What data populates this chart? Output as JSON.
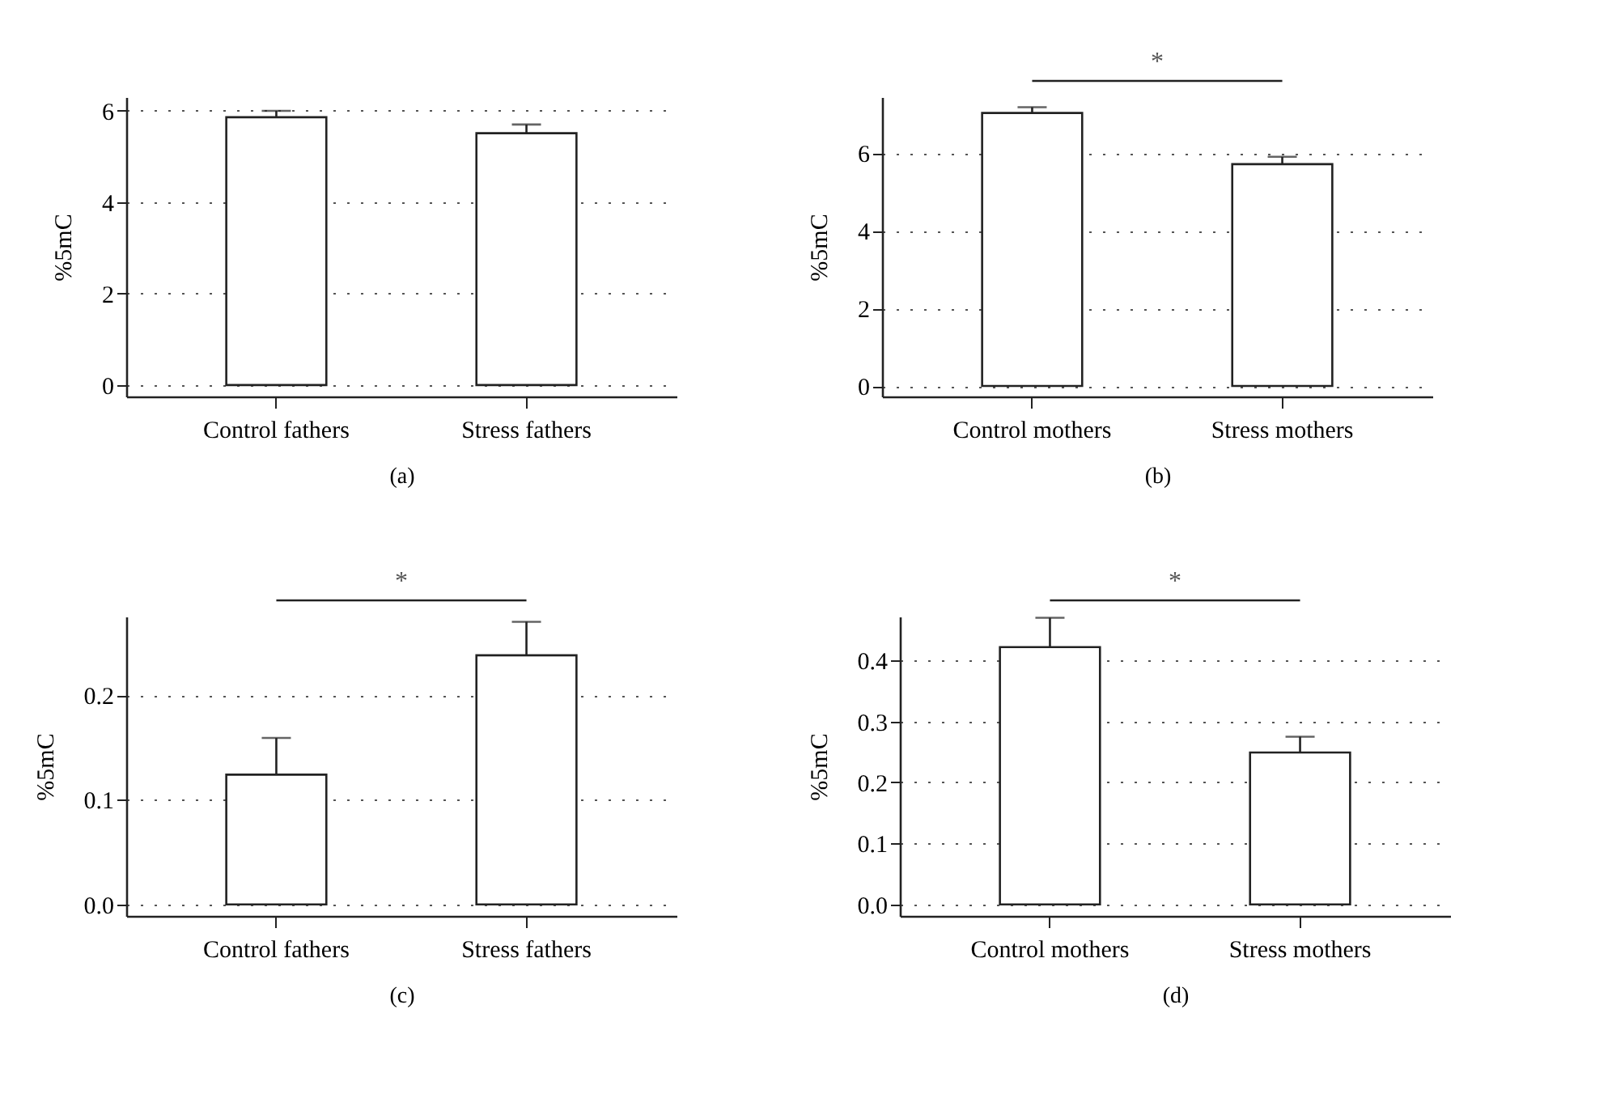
{
  "chart_data": [
    {
      "type": "bar",
      "xlabel": "(a)",
      "ylabel": "%5mC",
      "categories": [
        "Control fathers",
        "Stress fathers"
      ],
      "series": [
        {
          "color": "#ffffff",
          "values": [
            5.86,
            5.51
          ],
          "errors": [
            0.14,
            0.19
          ]
        }
      ],
      "ylim": [
        -0.25,
        6.3
      ],
      "yticks": [
        0,
        2,
        4,
        6
      ],
      "grid": "y"
    },
    {
      "type": "bar",
      "xlabel": "(b)",
      "ylabel": "%5mC",
      "categories": [
        "Control mothers",
        "Stress mothers"
      ],
      "series": [
        {
          "color": "#ffffff",
          "values": [
            7.04,
            5.72
          ],
          "errors": [
            0.15,
            0.19
          ]
        }
      ],
      "ylim": [
        -0.27,
        7.45
      ],
      "yticks": [
        0,
        2,
        4,
        6
      ],
      "grid": "y",
      "annotations": [
        "*"
      ]
    },
    {
      "type": "bar",
      "xlabel": "(c)",
      "ylabel": "%5mC",
      "categories": [
        "Control fathers",
        "Stress fathers"
      ],
      "series": [
        {
          "color": "#ffffff",
          "values": [
            0.124,
            0.238
          ],
          "errors": [
            0.035,
            0.032
          ]
        }
      ],
      "ylim": [
        -0.011,
        0.275
      ],
      "yticks": [
        {
          "value": 0,
          "label": "0.0"
        },
        0.1,
        0.2
      ],
      "grid": "y",
      "annotations": [
        "*"
      ]
    },
    {
      "type": "bar",
      "xlabel": "(d)",
      "ylabel": "%5mC",
      "categories": [
        "Control mothers",
        "Stress mothers"
      ],
      "series": [
        {
          "color": "#ffffff",
          "values": [
            0.422,
            0.249
          ],
          "errors": [
            0.048,
            0.026
          ]
        }
      ],
      "ylim": [
        -0.019,
        0.472
      ],
      "yticks": [
        {
          "value": 0,
          "label": "0.0"
        },
        0.1,
        0.2,
        0.3,
        0.4
      ],
      "grid": "y",
      "annotations": [
        "*"
      ]
    }
  ]
}
